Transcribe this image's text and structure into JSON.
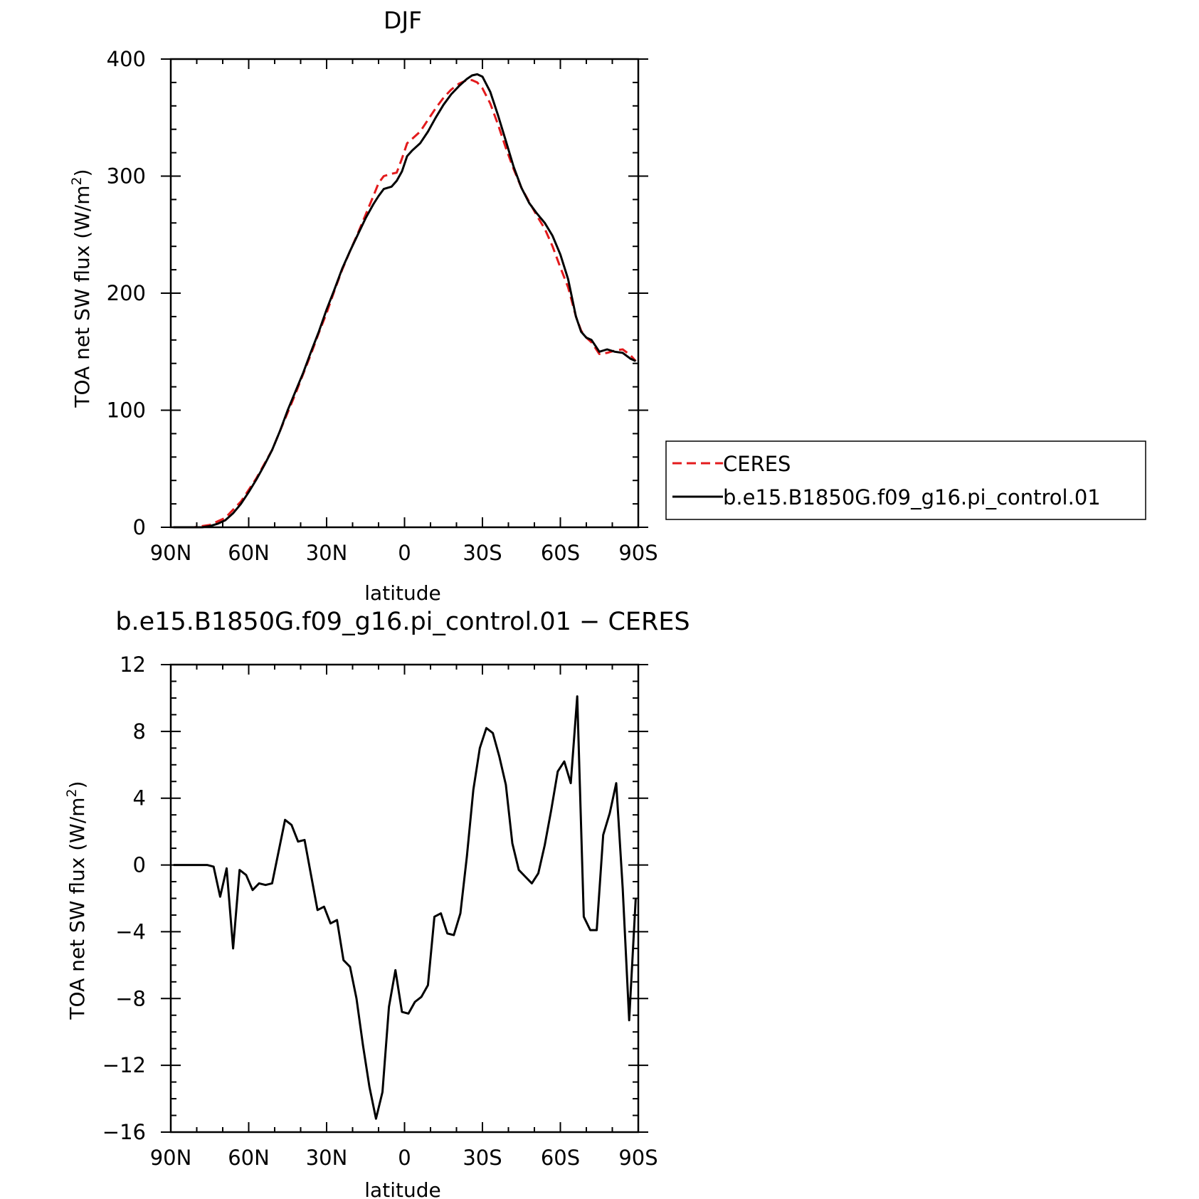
{
  "figure": {
    "background": "#ffffff"
  },
  "chart_data": [
    {
      "type": "line",
      "title": "DJF",
      "xlabel": "latitude",
      "ylabel_main": "TOA net SW flux (W/m",
      "ylabel_sup": "2",
      "ylabel_tail": ")",
      "x_axis": "latitude (positive = N, negative = S)",
      "xlim": [
        90,
        -90
      ],
      "ylim": [
        0,
        400
      ],
      "x_ticks": [
        {
          "value": 90,
          "label": "90N"
        },
        {
          "value": 60,
          "label": "60N"
        },
        {
          "value": 30,
          "label": "30N"
        },
        {
          "value": 0,
          "label": "0"
        },
        {
          "value": -30,
          "label": "30S"
        },
        {
          "value": -60,
          "label": "60S"
        },
        {
          "value": -90,
          "label": "90S"
        }
      ],
      "y_ticks": [
        {
          "value": 0,
          "label": "0"
        },
        {
          "value": 100,
          "label": "100"
        },
        {
          "value": 200,
          "label": "200"
        },
        {
          "value": 300,
          "label": "300"
        },
        {
          "value": 400,
          "label": "400"
        }
      ],
      "series": [
        {
          "name": "CERES",
          "color": "#e31a1c",
          "dash": true,
          "x": [
            89,
            85,
            81,
            78,
            75,
            72,
            69,
            66,
            63,
            60,
            57,
            54,
            51,
            48,
            45,
            42,
            39,
            36,
            33,
            30,
            27,
            24,
            21,
            18,
            15,
            12,
            10,
            8,
            5,
            3,
            1,
            -1,
            -3,
            -6,
            -9,
            -12,
            -15,
            -18,
            -21,
            -24,
            -26,
            -28,
            -30,
            -33,
            -36,
            -39,
            -42,
            -45,
            -48,
            -51,
            -54,
            -57,
            -60,
            -63,
            -66,
            -68,
            -70,
            -72,
            -75,
            -78,
            -81,
            -84,
            -87,
            -89
          ],
          "y": [
            0,
            0,
            0,
            1,
            2,
            5,
            8,
            15,
            22,
            32,
            42,
            54,
            66,
            82,
            98,
            114,
            131,
            148,
            166,
            183,
            202,
            220,
            236,
            251,
            267,
            283,
            294,
            300,
            302,
            303,
            315,
            328,
            332,
            338,
            348,
            358,
            367,
            374,
            379,
            382,
            382,
            380,
            375,
            362,
            344,
            324,
            306,
            290,
            278,
            266,
            255,
            240,
            222,
            205,
            180,
            168,
            162,
            158,
            148,
            149,
            151,
            152,
            147,
            142
          ]
        },
        {
          "name": "b.e15.B1850G.f09_g16.pi_control.01",
          "color": "#000000",
          "dash": false,
          "x": [
            89,
            85,
            81,
            78,
            75,
            72,
            69,
            66,
            63,
            60,
            57,
            54,
            51,
            48,
            45,
            42,
            39,
            36,
            33,
            30,
            27,
            24,
            21,
            18,
            15,
            12,
            10,
            8,
            5,
            3,
            1,
            -1,
            -3,
            -6,
            -9,
            -12,
            -15,
            -18,
            -21,
            -24,
            -26,
            -28,
            -30,
            -33,
            -36,
            -39,
            -42,
            -45,
            -48,
            -51,
            -54,
            -57,
            -60,
            -63,
            -66,
            -68,
            -70,
            -72,
            -75,
            -78,
            -81,
            -84,
            -87,
            -89
          ],
          "y": [
            0,
            0,
            0,
            0,
            1,
            3,
            6,
            12,
            20,
            30,
            41,
            53,
            66,
            82,
            100,
            116,
            132,
            150,
            167,
            186,
            203,
            221,
            236,
            250,
            264,
            276,
            283,
            289,
            291,
            296,
            304,
            317,
            322,
            328,
            338,
            350,
            361,
            370,
            377,
            383,
            386,
            387,
            385,
            372,
            352,
            330,
            308,
            290,
            277,
            268,
            260,
            249,
            233,
            212,
            180,
            167,
            162,
            160,
            150,
            152,
            150,
            149,
            144,
            142
          ]
        }
      ],
      "legend": {
        "placement": "right-bottom"
      }
    },
    {
      "type": "line",
      "title": "b.e15.B1850G.f09_g16.pi_control.01 − CERES",
      "xlabel": "latitude",
      "ylabel_main": "TOA net SW flux (W/m",
      "ylabel_sup": "2",
      "ylabel_tail": ")",
      "xlim": [
        90,
        -90
      ],
      "ylim": [
        -16,
        12
      ],
      "x_ticks": [
        {
          "value": 90,
          "label": "90N"
        },
        {
          "value": 60,
          "label": "60N"
        },
        {
          "value": 30,
          "label": "30N"
        },
        {
          "value": 0,
          "label": "0"
        },
        {
          "value": -30,
          "label": "30S"
        },
        {
          "value": -60,
          "label": "60S"
        },
        {
          "value": -90,
          "label": "90S"
        }
      ],
      "y_ticks": [
        {
          "value": -16,
          "label": "−16"
        },
        {
          "value": -12,
          "label": "−12"
        },
        {
          "value": -8,
          "label": "−8"
        },
        {
          "value": -4,
          "label": "−4"
        },
        {
          "value": 0,
          "label": "0"
        },
        {
          "value": 4,
          "label": "4"
        },
        {
          "value": 8,
          "label": "8"
        },
        {
          "value": 12,
          "label": "12"
        }
      ],
      "series": [
        {
          "name": "",
          "color": "#000000",
          "dash": false,
          "x": [
            89,
            86.5,
            84,
            81,
            78.5,
            76,
            73.5,
            71,
            68.5,
            66,
            63.5,
            61,
            58.5,
            56,
            53.5,
            51,
            48.5,
            46,
            43.5,
            41,
            38.5,
            36,
            33.5,
            31,
            28.5,
            26,
            23.5,
            21,
            18.5,
            16,
            13.5,
            11,
            8.5,
            6,
            3.5,
            1,
            -1.5,
            -4,
            -6.5,
            -9,
            -11.5,
            -14,
            -16.5,
            -19,
            -21.5,
            -24,
            -26.5,
            -29,
            -31.5,
            -34,
            -36.5,
            -39,
            -41.5,
            -44,
            -46.5,
            -49,
            -51.5,
            -54,
            -56.5,
            -59,
            -61.5,
            -64,
            -66.5,
            -69,
            -71.5,
            -74,
            -76.5,
            -79,
            -81.5,
            -84,
            -86.5,
            -89
          ],
          "y": [
            0,
            0,
            0,
            0,
            0,
            0,
            -0.1,
            -1.9,
            -0.2,
            -5.0,
            -0.3,
            -0.6,
            -1.5,
            -1.1,
            -1.2,
            -1.1,
            0.8,
            2.7,
            2.4,
            1.4,
            1.5,
            -0.6,
            -2.7,
            -2.5,
            -3.5,
            -3.3,
            -5.7,
            -6.1,
            -8.0,
            -10.8,
            -13.3,
            -15.2,
            -13.6,
            -8.5,
            -6.3,
            -8.8,
            -8.9,
            -8.2,
            -7.9,
            -7.2,
            -3.1,
            -2.9,
            -4.1,
            -4.2,
            -2.9,
            0.5,
            4.5,
            7.0,
            8.2,
            7.9,
            6.5,
            4.8,
            1.3,
            -0.3,
            -0.7,
            -1.1,
            -0.5,
            1.2,
            3.3,
            5.6,
            6.2,
            4.9,
            10.1,
            -3.1,
            -3.9,
            -3.9,
            1.8,
            3.1,
            4.9,
            -1.4,
            -9.3,
            -2.0
          ]
        }
      ]
    }
  ]
}
